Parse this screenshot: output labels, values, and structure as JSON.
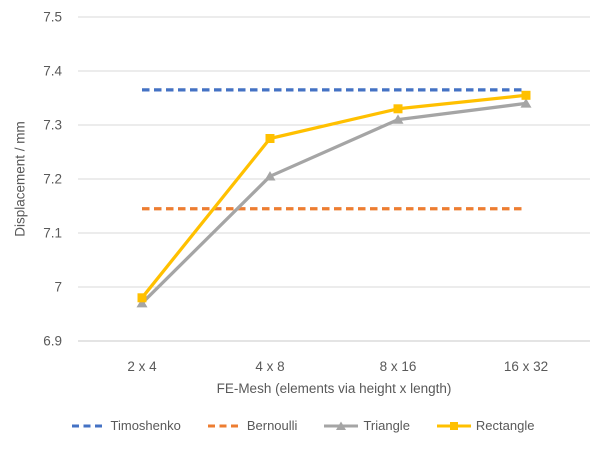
{
  "chart_data": {
    "type": "line",
    "categories": [
      "2 x 4",
      "4 x 8",
      "8 x 16",
      "16 x 32"
    ],
    "series": [
      {
        "name": "Timoshenko",
        "values": [
          7.365,
          7.365,
          7.365,
          7.365
        ],
        "color": "#4472C4",
        "line_style": "dashed",
        "marker": "none"
      },
      {
        "name": "Bernoulli",
        "values": [
          7.145,
          7.145,
          7.145,
          7.145
        ],
        "color": "#ED7D31",
        "line_style": "dashed",
        "marker": "none"
      },
      {
        "name": "Triangle",
        "values": [
          6.97,
          7.205,
          7.31,
          7.34
        ],
        "color": "#A5A5A5",
        "line_style": "solid",
        "marker": "triangle"
      },
      {
        "name": "Rectangle",
        "values": [
          6.98,
          7.275,
          7.33,
          7.355
        ],
        "color": "#FFC000",
        "line_style": "solid",
        "marker": "square"
      }
    ],
    "title": "",
    "xlabel": "FE-Mesh (elements via height x length)",
    "ylabel": "Displacement / mm",
    "ylim": [
      6.9,
      7.5
    ],
    "yticks": [
      "6.9",
      "7",
      "7.1",
      "7.2",
      "7.3",
      "7.4",
      "7.5"
    ],
    "grid": true,
    "legend_position": "bottom"
  },
  "colors": {
    "text": "#595959",
    "gridline": "#D9D9D9",
    "axis_line": "#C8C8C8",
    "background": "#FFFFFF"
  }
}
